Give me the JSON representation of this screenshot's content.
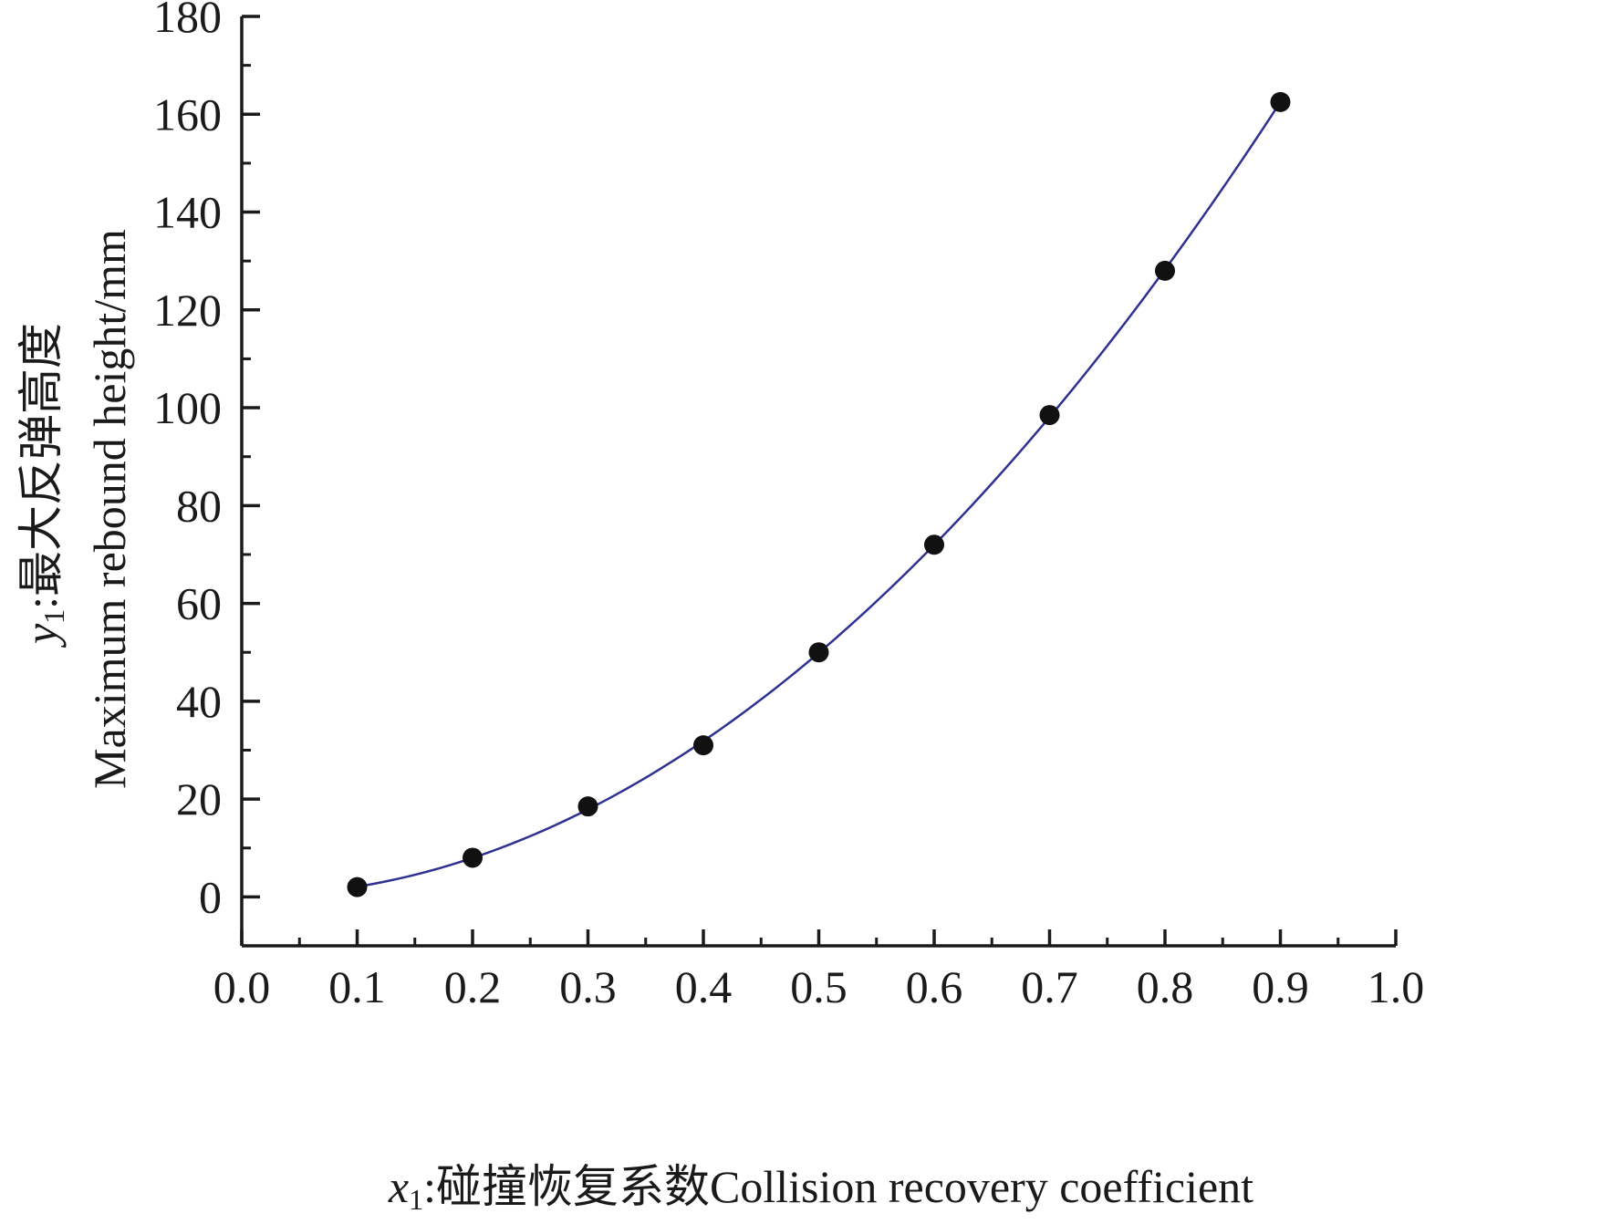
{
  "chart_data": {
    "type": "scatter",
    "x": [
      0.1,
      0.2,
      0.3,
      0.4,
      0.5,
      0.6,
      0.7,
      0.8,
      0.9
    ],
    "y": [
      2,
      8,
      18.5,
      31,
      50,
      72,
      98.5,
      128,
      162.5
    ],
    "fit_curve": true,
    "xlim": [
      0.0,
      1.0
    ],
    "ylim": [
      -10,
      180
    ],
    "xticks": [
      "0.0",
      "0.1",
      "0.2",
      "0.3",
      "0.4",
      "0.5",
      "0.6",
      "0.7",
      "0.8",
      "0.9",
      "1.0"
    ],
    "yticks": [
      "0",
      "20",
      "40",
      "60",
      "80",
      "100",
      "120",
      "140",
      "160",
      "180"
    ],
    "xlabel": {
      "var": "x",
      "sub": "1",
      "text": ":碰撞恢复系数Collision recovery coefficient"
    },
    "ylabel": {
      "var": "y",
      "sub": "1",
      "text": ":最大反弹高度",
      "line2": "Maximum rebound height/mm"
    },
    "grid": false,
    "colors": {
      "curve": "#2e3192",
      "points": "#111111",
      "axes": "#1a1a1a"
    }
  }
}
